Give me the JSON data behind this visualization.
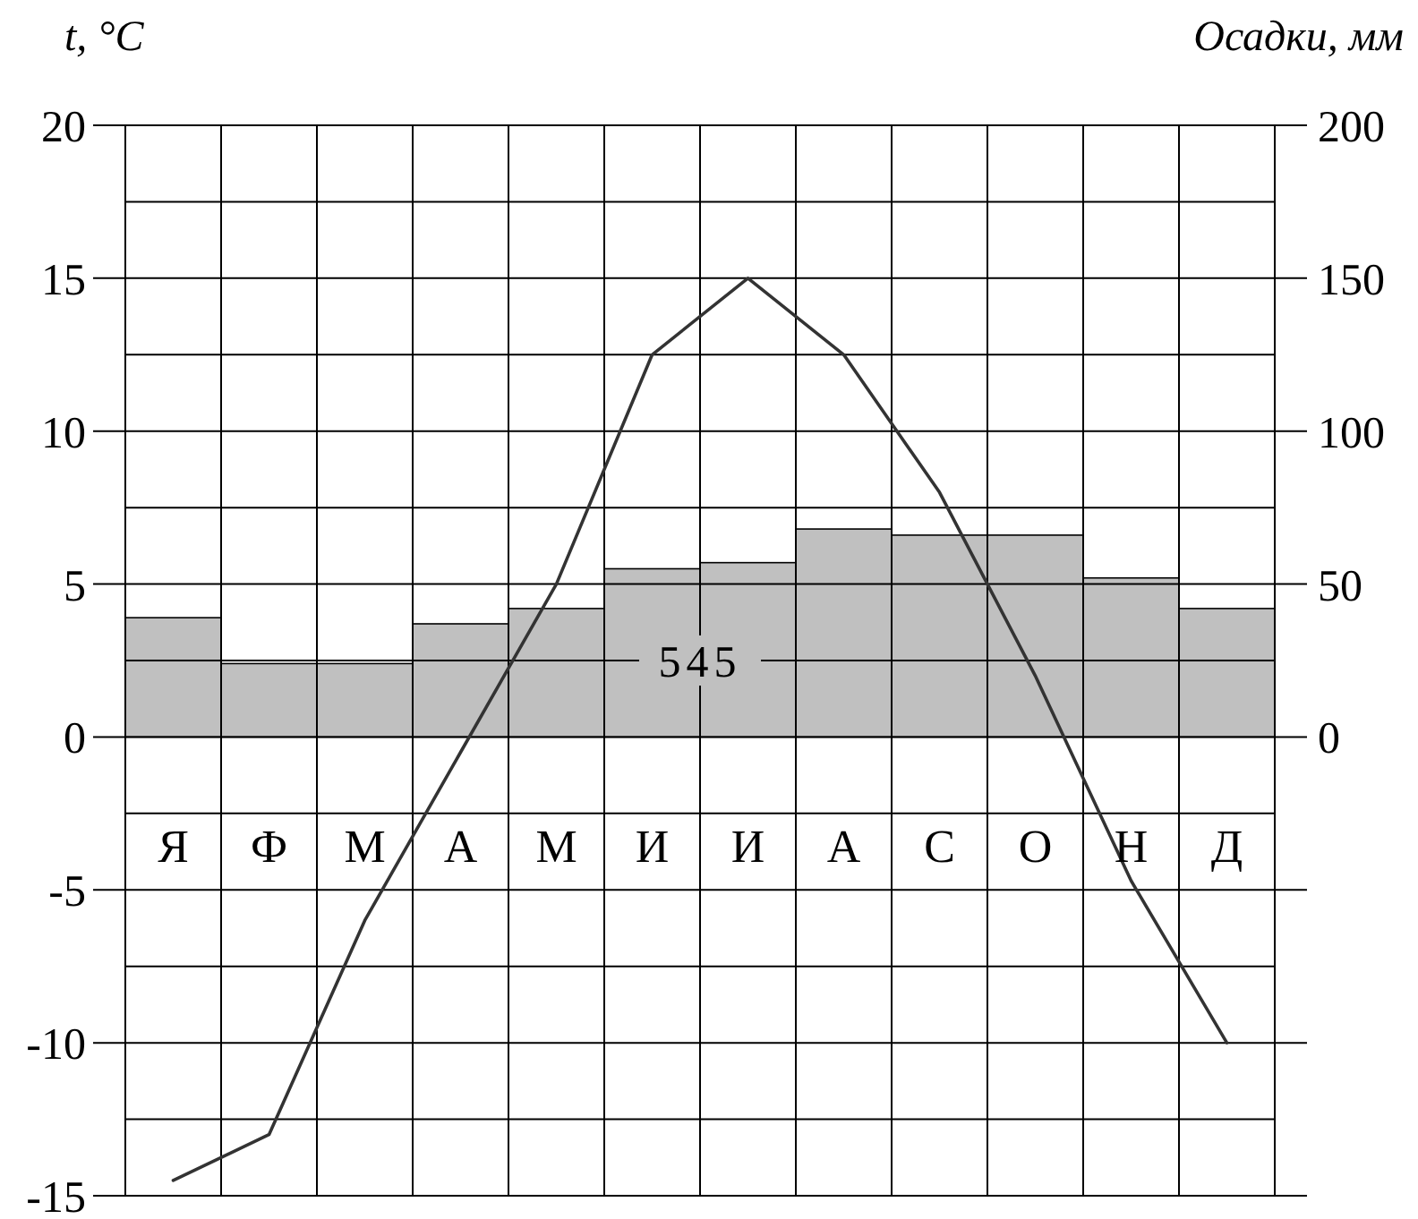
{
  "chart_data": {
    "type": "bar",
    "ylabel": "t, °C",
    "y2label": "Осадки, мм",
    "categories": [
      "Я",
      "Ф",
      "М",
      "А",
      "М",
      "И",
      "И",
      "А",
      "С",
      "О",
      "Н",
      "Д"
    ],
    "series": [
      {
        "axis": "y2",
        "color": "#c0c0c0",
        "values": [
          39,
          24,
          24,
          37,
          42,
          55,
          57,
          68,
          66,
          66,
          52,
          42
        ]
      },
      {
        "type": "line",
        "axis": "y",
        "color": "#333333",
        "values": [
          -14.5,
          -13,
          -6,
          -0.5,
          5,
          12.5,
          15,
          12.5,
          8,
          2,
          -4.7,
          -10
        ]
      }
    ],
    "ylim": [
      -15,
      20
    ],
    "yticks": [
      -15,
      -10,
      -5,
      0,
      5,
      10,
      15,
      20
    ],
    "y2lim": [
      -150,
      200
    ],
    "y2ticks": [
      0,
      50,
      100,
      150,
      200
    ],
    "grid": true,
    "marker": "none",
    "line_style": "solid",
    "annotations": [
      "545"
    ]
  }
}
